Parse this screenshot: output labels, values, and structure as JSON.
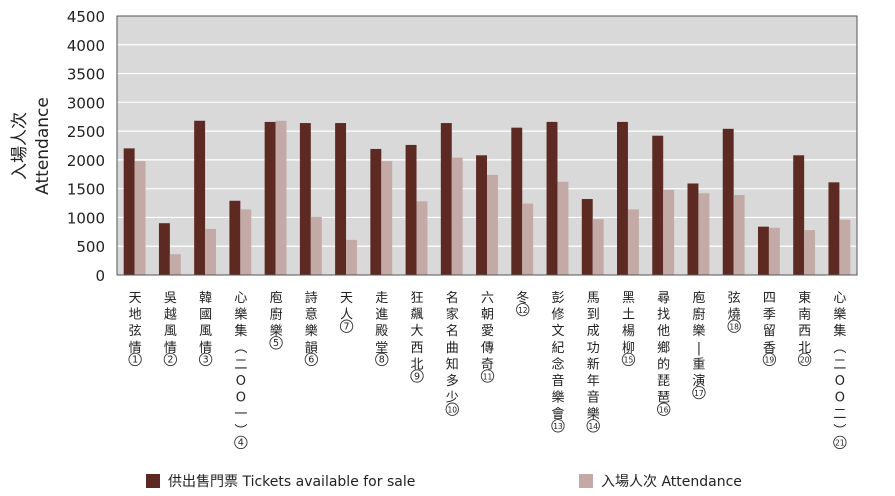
{
  "chart_data": {
    "type": "bar",
    "ylabel_zh": "入場人次",
    "ylabel_en": "Attendance",
    "ylim": [
      0,
      4500
    ],
    "yticks": [
      0,
      500,
      1000,
      1500,
      2000,
      2500,
      3000,
      3500,
      4000,
      4500
    ],
    "grid": true,
    "legend_position": "bottom",
    "categories": [
      {
        "label": "天地弦情",
        "num": "1"
      },
      {
        "label": "吳越風情",
        "num": "2"
      },
      {
        "label": "韓國風情",
        "num": "3"
      },
      {
        "label": "心樂集（二〇〇一）",
        "num": "4"
      },
      {
        "label": "庖廚樂",
        "num": "5"
      },
      {
        "label": "詩意樂韻",
        "num": "6"
      },
      {
        "label": "天人",
        "num": "7"
      },
      {
        "label": "走進殿堂",
        "num": "8"
      },
      {
        "label": "狂飆大西北",
        "num": "9"
      },
      {
        "label": "名家名曲知多少",
        "num": "10"
      },
      {
        "label": "六朝愛傳奇",
        "num": "11"
      },
      {
        "label": "冬",
        "num": "12"
      },
      {
        "label": "彭修文紀念音樂會",
        "num": "13"
      },
      {
        "label": "馬到成功新年音樂",
        "num": "14"
      },
      {
        "label": "黑土楊柳",
        "num": "15"
      },
      {
        "label": "尋找他鄉的琵琶",
        "num": "16"
      },
      {
        "label": "庖廚樂－重演",
        "num": "17"
      },
      {
        "label": "弦燒",
        "num": "18"
      },
      {
        "label": "四季留香",
        "num": "19"
      },
      {
        "label": "東南西北",
        "num": "20"
      },
      {
        "label": "心樂集（二〇〇二）",
        "num": "21"
      }
    ],
    "series": [
      {
        "name": "供出售門票 Tickets available for sale",
        "color": "#5c2a22",
        "values": [
          2200,
          900,
          2680,
          1290,
          2660,
          2640,
          2640,
          2190,
          2260,
          2640,
          2080,
          2560,
          2660,
          1320,
          2660,
          2420,
          1590,
          2540,
          840,
          2080,
          1610
        ]
      },
      {
        "name": "入場人次 Attendance",
        "color": "#c3aaa6",
        "values": [
          1980,
          360,
          800,
          1140,
          2680,
          1010,
          610,
          1980,
          1280,
          2040,
          1740,
          1240,
          1620,
          970,
          1140,
          1480,
          1420,
          1390,
          820,
          780,
          960
        ]
      }
    ]
  }
}
